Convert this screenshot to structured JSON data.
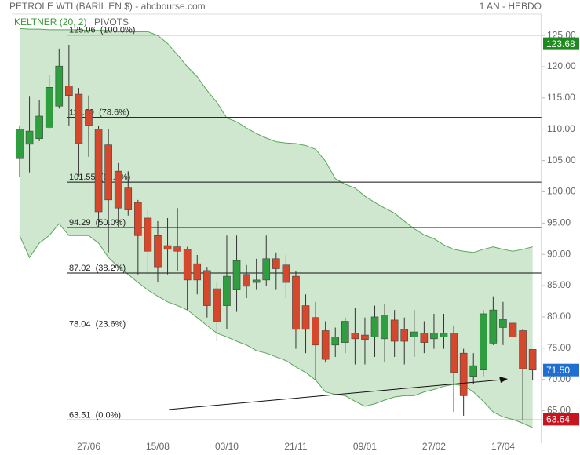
{
  "chart_data": {
    "type": "candlestick",
    "title": "PETROLE WTI (BARIL EN $) - abcbourse.com",
    "period": "1 AN - HEBDO",
    "legend": [
      "KELTNER (20, 2)",
      "PIVOTS"
    ],
    "categories": [
      null,
      null,
      null,
      null,
      null,
      null,
      null,
      "27/06",
      null,
      null,
      null,
      null,
      null,
      null,
      "15/08",
      null,
      null,
      null,
      null,
      null,
      null,
      "03/10",
      null,
      null,
      null,
      null,
      null,
      null,
      "21/11",
      null,
      null,
      null,
      null,
      null,
      null,
      "09/01",
      null,
      null,
      null,
      null,
      null,
      null,
      "27/02",
      null,
      null,
      null,
      null,
      null,
      null,
      "17/04",
      null,
      null,
      null
    ],
    "open": [
      105.3,
      107.6,
      108.5,
      110.3,
      113.7,
      116.9,
      115.6,
      113.1,
      110.0,
      107.5,
      103.3,
      100.6,
      98.3,
      95.8,
      93.0,
      91.4,
      91.2,
      90.8,
      88.5,
      87.4,
      84.5,
      81.8,
      84.3,
      86.8,
      85.5,
      85.9,
      89.3,
      88.3,
      86.5,
      81.8,
      79.9,
      77.8,
      75.5,
      75.9,
      77.4,
      77.1,
      76.8,
      76.5,
      79.5,
      78.0,
      76.8,
      77.4,
      76.5,
      76.8,
      77.4,
      74.2,
      70.5,
      71.5,
      75.8,
      78.3,
      79.0,
      77.8,
      74.8
    ],
    "high": [
      110.6,
      115.2,
      114.6,
      118.7,
      122.9,
      123.4,
      116.6,
      115.4,
      110.6,
      110.0,
      104.6,
      103.3,
      98.7,
      97.1,
      95.3,
      95.8,
      97.4,
      91.2,
      89.9,
      88.0,
      85.5,
      93.0,
      93.0,
      88.3,
      89.3,
      93.0,
      90.3,
      89.9,
      87.4,
      83.6,
      82.4,
      79.3,
      78.3,
      79.9,
      81.4,
      79.9,
      81.8,
      82.0,
      81.1,
      79.9,
      81.1,
      79.3,
      80.5,
      80.5,
      78.6,
      74.9,
      74.2,
      81.1,
      83.3,
      82.4,
      79.9,
      78.0,
      74.8
    ],
    "low": [
      102.4,
      103.1,
      108.1,
      110.0,
      113.3,
      110.6,
      102.4,
      105.6,
      94.3,
      90.3,
      94.3,
      96.2,
      86.8,
      86.8,
      85.5,
      86.8,
      87.4,
      81.1,
      83.6,
      79.9,
      76.1,
      78.0,
      80.8,
      83.0,
      84.3,
      84.9,
      84.3,
      83.0,
      74.9,
      74.2,
      69.9,
      72.7,
      73.6,
      74.2,
      72.4,
      72.4,
      73.6,
      72.7,
      73.6,
      72.4,
      73.6,
      74.2,
      74.9,
      74.9,
      64.8,
      64.2,
      69.2,
      70.5,
      75.5,
      75.5,
      69.9,
      63.5,
      69.9
    ],
    "close": [
      110.0,
      109.7,
      112.1,
      116.7,
      120.1,
      115.4,
      107.7,
      110.6,
      96.8,
      98.7,
      97.4,
      97.1,
      93.0,
      90.5,
      88.0,
      90.8,
      90.5,
      85.9,
      85.9,
      81.8,
      79.3,
      86.5,
      89.0,
      84.9,
      85.9,
      89.3,
      87.7,
      85.5,
      78.0,
      78.0,
      75.5,
      73.2,
      76.8,
      79.3,
      76.5,
      76.4,
      80.0,
      80.3,
      76.1,
      76.1,
      77.6,
      75.9,
      77.4,
      77.4,
      71.1,
      67.4,
      72.2,
      80.5,
      81.1,
      79.6,
      76.8,
      71.7,
      71.5
    ],
    "up_color": "#2e9e3e",
    "down_color": "#d6482c",
    "band": {
      "color": "#5aa55a",
      "fill": "#cfe7cf",
      "upper": [
        126.1,
        126.0,
        126.0,
        125.9,
        125.9,
        125.9,
        125.9,
        125.8,
        125.8,
        125.8,
        125.6,
        125.6,
        125.6,
        125.6,
        125.0,
        123.7,
        121.9,
        120.0,
        118.4,
        116.2,
        114.3,
        111.8,
        111.2,
        110.2,
        109.3,
        108.6,
        108.0,
        107.8,
        107.7,
        107.4,
        106.8,
        104.9,
        102.1,
        101.2,
        100.6,
        99.3,
        98.3,
        97.4,
        96.6,
        95.3,
        94.1,
        93.1,
        92.5,
        91.5,
        90.8,
        90.5,
        90.3,
        90.8,
        91.2,
        90.8,
        90.5,
        90.8,
        91.2
      ],
      "lower": [
        93.0,
        89.5,
        91.8,
        93.0,
        94.9,
        93.0,
        93.0,
        93.0,
        91.8,
        89.5,
        88.0,
        86.8,
        85.5,
        84.3,
        83.3,
        82.4,
        81.8,
        81.1,
        79.9,
        78.6,
        77.4,
        76.8,
        76.1,
        75.5,
        74.6,
        74.2,
        73.6,
        73.0,
        72.0,
        71.1,
        69.9,
        68.0,
        67.6,
        67.4,
        66.5,
        65.7,
        66.1,
        66.7,
        67.2,
        67.4,
        67.4,
        68.0,
        68.4,
        68.9,
        69.2,
        69.0,
        68.0,
        66.5,
        64.8,
        64.0,
        63.6,
        63.0,
        62.3
      ]
    },
    "levels": [
      {
        "value": 125.06,
        "label": "125.06  (100.0%)"
      },
      {
        "value": 111.89,
        "label": "111.89  (78.6%)"
      },
      {
        "value": 101.55,
        "label": "101.55  (61.8%)"
      },
      {
        "value": 94.29,
        "label": "94.29  (50.0%)"
      },
      {
        "value": 87.02,
        "label": "87.02  (38.2%)"
      },
      {
        "value": 78.04,
        "label": "78.04  (23.6%)"
      },
      {
        "value": 63.51,
        "label": "63.51  (0.0%)"
      }
    ],
    "price_tags": [
      {
        "value": 123.68,
        "color": "#1f8a1f"
      },
      {
        "value": 71.5,
        "label": "71.50",
        "color": "#1e6fd0"
      },
      {
        "value": 63.64,
        "color": "#c8141e"
      }
    ],
    "ylim": [
      59.8,
      128.4
    ],
    "yticks": [
      {
        "value": 65,
        "label": "65.00"
      },
      {
        "value": 70,
        "label": "70.00"
      },
      {
        "value": 75,
        "label": "75.00"
      },
      {
        "value": 80,
        "label": "80.00"
      },
      {
        "value": 85,
        "label": "85.00"
      },
      {
        "value": 90,
        "label": "90.00"
      },
      {
        "value": 95,
        "label": "95.00"
      },
      {
        "value": 100,
        "label": "100.00"
      },
      {
        "value": 105,
        "label": "105.00"
      },
      {
        "value": 110,
        "label": "110.00"
      },
      {
        "value": 115,
        "label": "115.00"
      },
      {
        "value": 120,
        "label": "120.00"
      },
      {
        "value": 125,
        "label": "125.00"
      }
    ]
  }
}
